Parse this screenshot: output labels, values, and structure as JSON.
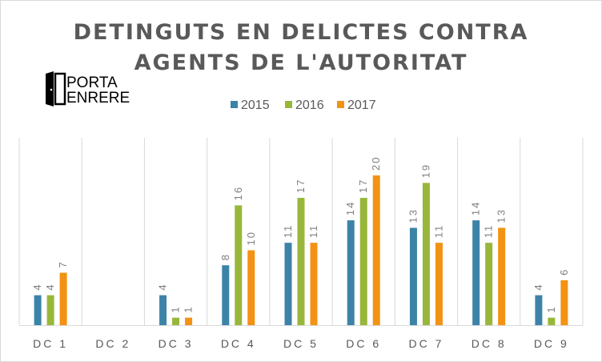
{
  "chart_data": {
    "type": "bar",
    "title_lines": [
      "DETINGUTS EN DELICTES CONTRA",
      "AGENTS DE L'AUTORITAT"
    ],
    "categories": [
      "DC 1",
      "DC 2",
      "DC 3",
      "DC 4",
      "DC 5",
      "DC 6",
      "DC 7",
      "DC 8",
      "DC 9"
    ],
    "series": [
      {
        "name": "2015",
        "color": "#3c83a8",
        "values": [
          4,
          null,
          4,
          8,
          11,
          14,
          13,
          14,
          4
        ]
      },
      {
        "name": "2016",
        "color": "#98b73a",
        "values": [
          4,
          null,
          1,
          16,
          17,
          17,
          19,
          11,
          1
        ]
      },
      {
        "name": "2017",
        "color": "#f39213",
        "values": [
          7,
          null,
          1,
          10,
          11,
          20,
          11,
          13,
          6
        ]
      }
    ],
    "ylim": [
      0,
      20
    ],
    "legend_position": "top-center",
    "grid": "vertical separators between categories",
    "xlabel": "",
    "ylabel": ""
  },
  "logo": {
    "line1": "PORTA",
    "line2": "ENRERE",
    "icon": "door-icon"
  }
}
